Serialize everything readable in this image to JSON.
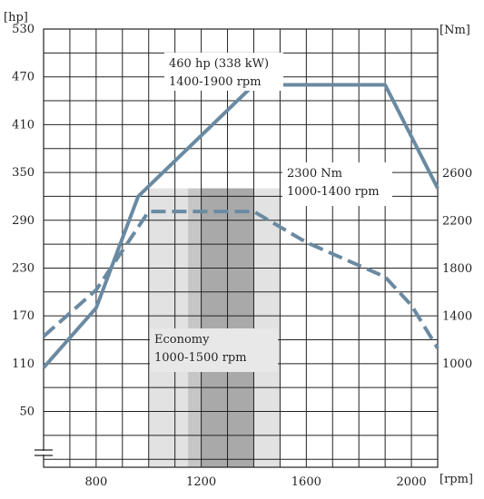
{
  "chart_data": {
    "type": "line",
    "x": {
      "unit_label": "[rpm]",
      "ticks": [
        800,
        1200,
        1600,
        2000
      ],
      "range": [
        600,
        2100
      ],
      "grid_step": 100
    },
    "y_left": {
      "unit_label": "[hp]",
      "ticks": [
        50,
        110,
        170,
        230,
        290,
        350,
        410,
        470,
        530
      ],
      "range": [
        -20,
        530
      ]
    },
    "y_right": {
      "unit_label": "[Nm]",
      "ticks": [
        1000,
        1400,
        1800,
        2200,
        2600
      ],
      "range_mapping": {
        "nm_at_hp_110": 1000,
        "nm_per_hp": 6.7
      }
    },
    "grid": true,
    "series": [
      {
        "name": "power",
        "axis": "left",
        "color": "#6a8aa2",
        "style": "solid",
        "points": [
          [
            600,
            105
          ],
          [
            800,
            180
          ],
          [
            960,
            320
          ],
          [
            1400,
            460
          ],
          [
            1900,
            460
          ],
          [
            2000,
            395
          ],
          [
            2100,
            330
          ]
        ]
      },
      {
        "name": "torque",
        "axis": "right",
        "color": "#6a8aa2",
        "style": "dashed",
        "points": [
          [
            600,
            1230
          ],
          [
            800,
            1620
          ],
          [
            1000,
            2280
          ],
          [
            1400,
            2280
          ],
          [
            1600,
            2020
          ],
          [
            1900,
            1730
          ],
          [
            2000,
            1490
          ],
          [
            2100,
            1130
          ]
        ]
      }
    ],
    "bands": [
      {
        "name": "economy",
        "from": 1000,
        "to": 1500,
        "color": "#e2e2e2"
      },
      {
        "name": "mid",
        "from": 1150,
        "to": 1400,
        "color": "#c6c6c6"
      },
      {
        "name": "core",
        "from": 1200,
        "to": 1400,
        "color": "#a9a9a9"
      }
    ],
    "annotations": [
      {
        "name": "power-peak",
        "lines": [
          "460 hp (338 kW)",
          "1400-1900 rpm"
        ]
      },
      {
        "name": "torque-peak",
        "lines": [
          "2300 Nm",
          "1000-1400 rpm"
        ]
      },
      {
        "name": "economy",
        "lines": [
          "Economy",
          "1000-1500 rpm"
        ]
      }
    ]
  }
}
